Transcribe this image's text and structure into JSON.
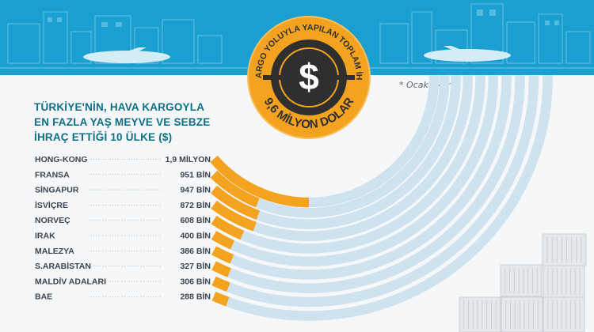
{
  "badge": {
    "arc_text": "HAVA KARGO YOLUYLA YAPILAN TOPLAM İHRACAT",
    "currency_symbol": "$",
    "total_text": "9,6 MİLYON DOLAR"
  },
  "note": "* Ocak-ekim",
  "title_lines": [
    "TÜRKİYE'NİN, HAVA KARGOYLA",
    "EN FAZLA YAŞ MEYVE VE SEBZE",
    "İHRAÇ ETTİĞİ 10 ÜLKE ($)"
  ],
  "colors": {
    "bar": "#f4a320",
    "track": "#cfe2ef",
    "banner": "#1a9fd0",
    "title": "#0f6f86"
  },
  "chart_data": {
    "type": "bar",
    "orientation": "horizontal",
    "unit": "$",
    "categories": [
      "HONG-KONG",
      "FRANSA",
      "SİNGAPUR",
      "İSVİÇRE",
      "NORVEÇ",
      "IRAK",
      "MALEZYA",
      "S.ARABİSTAN",
      "MALDİV ADALARI",
      "BAE"
    ],
    "values": [
      1900000,
      951000,
      947000,
      872000,
      608000,
      400000,
      386000,
      327000,
      306000,
      288000
    ],
    "value_labels": [
      "1,9 MİLYON",
      "951 BİN",
      "947 BİN",
      "872 BİN",
      "608 BİN",
      "400 BİN",
      "386 BİN",
      "327 BİN",
      "306 BİN",
      "288 BİN"
    ]
  }
}
